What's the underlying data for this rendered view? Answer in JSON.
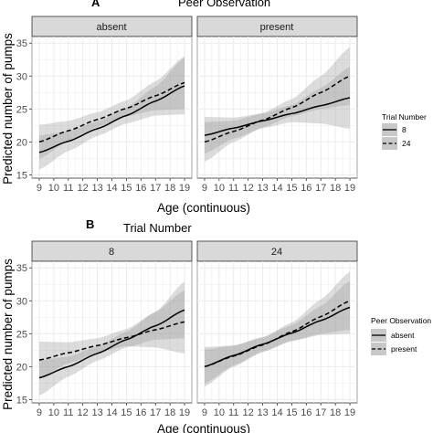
{
  "chart_data": [
    {
      "type": "line",
      "panel_letter": "A",
      "title": "Peer Observation",
      "xlabel": "Age (continuous)",
      "ylabel": "Predicted number of pumps",
      "xlim": [
        8.5,
        19.5
      ],
      "ylim": [
        14.5,
        36
      ],
      "x_ticks": [
        9,
        10,
        11,
        12,
        13,
        14,
        15,
        16,
        17,
        18,
        19
      ],
      "y_ticks": [
        15,
        20,
        25,
        30,
        35
      ],
      "grid": true,
      "legend": {
        "title": "Trial Number",
        "position": "right",
        "entries": [
          "8",
          "24"
        ]
      },
      "facets": [
        {
          "strip": "absent",
          "series": [
            {
              "name": "8",
              "linestyle": "solid",
              "points": [
                [
                  9,
                  18.4
                ],
                [
                  11,
                  20.1
                ],
                [
                  13,
                  22.0
                ],
                [
                  15,
                  24.0
                ],
                [
                  17,
                  26.2
                ],
                [
                  19,
                  28.5
                ]
              ],
              "band_lower": [
                [
                  9,
                  15.8
                ],
                [
                  11,
                  18.6
                ],
                [
                  13,
                  20.9
                ],
                [
                  15,
                  22.8
                ],
                [
                  17,
                  24.0
                ],
                [
                  19,
                  24.2
                ]
              ],
              "band_upper": [
                [
                  9,
                  21.0
                ],
                [
                  11,
                  21.6
                ],
                [
                  13,
                  23.1
                ],
                [
                  15,
                  25.2
                ],
                [
                  17,
                  28.4
                ],
                [
                  19,
                  32.8
                ]
              ]
            },
            {
              "name": "24",
              "linestyle": "dashed",
              "points": [
                [
                  9,
                  20.0
                ],
                [
                  11,
                  21.7
                ],
                [
                  13,
                  23.4
                ],
                [
                  15,
                  25.1
                ],
                [
                  17,
                  27.0
                ],
                [
                  19,
                  29.0
                ]
              ],
              "band_lower": [
                [
                  9,
                  17.4
                ],
                [
                  11,
                  20.2
                ],
                [
                  13,
                  22.3
                ],
                [
                  15,
                  23.9
                ],
                [
                  17,
                  24.8
                ],
                [
                  19,
                  25.0
                ]
              ],
              "band_upper": [
                [
                  9,
                  22.6
                ],
                [
                  11,
                  23.2
                ],
                [
                  13,
                  24.5
                ],
                [
                  15,
                  26.3
                ],
                [
                  17,
                  29.2
                ],
                [
                  19,
                  33.0
                ]
              ]
            }
          ]
        },
        {
          "strip": "present",
          "series": [
            {
              "name": "8",
              "linestyle": "solid",
              "points": [
                [
                  9,
                  21.0
                ],
                [
                  11,
                  22.1
                ],
                [
                  13,
                  23.2
                ],
                [
                  15,
                  24.3
                ],
                [
                  17,
                  25.5
                ],
                [
                  19,
                  26.7
                ]
              ],
              "band_lower": [
                [
                  9,
                  18.2
                ],
                [
                  11,
                  20.5
                ],
                [
                  13,
                  22.1
                ],
                [
                  15,
                  23.0
                ],
                [
                  17,
                  22.8
                ],
                [
                  19,
                  22.0
                ]
              ],
              "band_upper": [
                [
                  9,
                  23.8
                ],
                [
                  11,
                  23.7
                ],
                [
                  13,
                  24.3
                ],
                [
                  15,
                  25.6
                ],
                [
                  17,
                  28.2
                ],
                [
                  19,
                  31.4
                ]
              ]
            },
            {
              "name": "24",
              "linestyle": "dashed",
              "points": [
                [
                  9,
                  20.0
                ],
                [
                  11,
                  21.6
                ],
                [
                  13,
                  23.3
                ],
                [
                  15,
                  25.2
                ],
                [
                  17,
                  27.5
                ],
                [
                  19,
                  30.0
                ]
              ],
              "band_lower": [
                [
                  9,
                  17.0
                ],
                [
                  11,
                  20.0
                ],
                [
                  13,
                  22.2
                ],
                [
                  15,
                  23.9
                ],
                [
                  17,
                  25.0
                ],
                [
                  19,
                  25.6
                ]
              ],
              "band_upper": [
                [
                  9,
                  23.0
                ],
                [
                  11,
                  23.2
                ],
                [
                  13,
                  24.4
                ],
                [
                  15,
                  26.5
                ],
                [
                  17,
                  30.0
                ],
                [
                  19,
                  34.4
                ]
              ]
            }
          ]
        }
      ]
    },
    {
      "type": "line",
      "panel_letter": "B",
      "title": "Trial Number",
      "xlabel": "Age (continuous)",
      "ylabel": "Predicted number of pumps",
      "xlim": [
        8.5,
        19.5
      ],
      "ylim": [
        14.5,
        36
      ],
      "x_ticks": [
        9,
        10,
        11,
        12,
        13,
        14,
        15,
        16,
        17,
        18,
        19
      ],
      "y_ticks": [
        15,
        20,
        25,
        30,
        35
      ],
      "grid": true,
      "legend": {
        "title": "Peer Observation",
        "position": "right",
        "entries": [
          "absent",
          "present"
        ]
      },
      "facets": [
        {
          "strip": "8",
          "series": [
            {
              "name": "absent",
              "linestyle": "solid",
              "points": [
                [
                  9,
                  18.3
                ],
                [
                  11,
                  20.0
                ],
                [
                  13,
                  22.0
                ],
                [
                  15,
                  24.1
                ],
                [
                  17,
                  26.2
                ],
                [
                  19,
                  28.6
                ]
              ],
              "band_lower": [
                [
                  9,
                  15.6
                ],
                [
                  11,
                  18.5
                ],
                [
                  13,
                  20.9
                ],
                [
                  15,
                  22.9
                ],
                [
                  17,
                  24.1
                ],
                [
                  19,
                  24.3
                ]
              ],
              "band_upper": [
                [
                  9,
                  21.0
                ],
                [
                  11,
                  21.5
                ],
                [
                  13,
                  23.1
                ],
                [
                  15,
                  25.3
                ],
                [
                  17,
                  28.3
                ],
                [
                  19,
                  32.9
                ]
              ]
            },
            {
              "name": "present",
              "linestyle": "dashed",
              "points": [
                [
                  9,
                  21.0
                ],
                [
                  11,
                  22.1
                ],
                [
                  13,
                  23.2
                ],
                [
                  15,
                  24.4
                ],
                [
                  17,
                  25.6
                ],
                [
                  19,
                  26.8
                ]
              ],
              "band_lower": [
                [
                  9,
                  18.2
                ],
                [
                  11,
                  20.5
                ],
                [
                  13,
                  22.1
                ],
                [
                  15,
                  23.1
                ],
                [
                  17,
                  22.9
                ],
                [
                  19,
                  22.0
                ]
              ],
              "band_upper": [
                [
                  9,
                  23.8
                ],
                [
                  11,
                  23.7
                ],
                [
                  13,
                  24.3
                ],
                [
                  15,
                  25.7
                ],
                [
                  17,
                  28.3
                ],
                [
                  19,
                  31.6
                ]
              ]
            }
          ]
        },
        {
          "strip": "24",
          "series": [
            {
              "name": "absent",
              "linestyle": "solid",
              "points": [
                [
                  9,
                  20.0
                ],
                [
                  11,
                  21.7
                ],
                [
                  13,
                  23.4
                ],
                [
                  15,
                  25.1
                ],
                [
                  17,
                  27.0
                ],
                [
                  19,
                  29.0
                ]
              ],
              "band_lower": [
                [
                  9,
                  17.4
                ],
                [
                  11,
                  20.2
                ],
                [
                  13,
                  22.3
                ],
                [
                  15,
                  23.9
                ],
                [
                  17,
                  24.8
                ],
                [
                  19,
                  25.0
                ]
              ],
              "band_upper": [
                [
                  9,
                  22.6
                ],
                [
                  11,
                  23.2
                ],
                [
                  13,
                  24.5
                ],
                [
                  15,
                  26.3
                ],
                [
                  17,
                  29.2
                ],
                [
                  19,
                  33.0
                ]
              ]
            },
            {
              "name": "present",
              "linestyle": "dashed",
              "points": [
                [
                  9,
                  20.0
                ],
                [
                  11,
                  21.6
                ],
                [
                  13,
                  23.3
                ],
                [
                  15,
                  25.3
                ],
                [
                  17,
                  27.6
                ],
                [
                  19,
                  30.0
                ]
              ],
              "band_lower": [
                [
                  9,
                  17.0
                ],
                [
                  11,
                  20.0
                ],
                [
                  13,
                  22.2
                ],
                [
                  15,
                  23.9
                ],
                [
                  17,
                  25.0
                ],
                [
                  19,
                  25.6
                ]
              ],
              "band_upper": [
                [
                  9,
                  23.0
                ],
                [
                  11,
                  23.2
                ],
                [
                  13,
                  24.4
                ],
                [
                  15,
                  26.7
                ],
                [
                  17,
                  30.2
                ],
                [
                  19,
                  34.4
                ]
              ]
            }
          ]
        }
      ]
    }
  ],
  "colors": {
    "panel_bg": "#ffffff",
    "grid": "#ebebeb",
    "strip_bg": "#d9d9d9",
    "strip_border": "#333333",
    "band": "#9a9a9a",
    "line": "#000000"
  }
}
